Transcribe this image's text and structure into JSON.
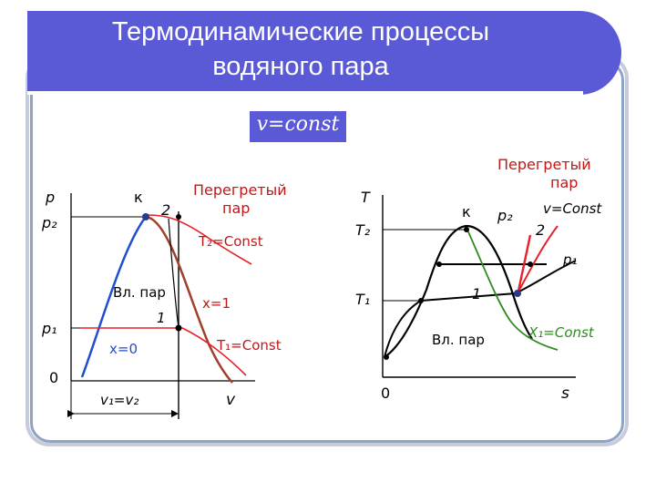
{
  "title": {
    "line1": "Термодинамические процессы",
    "line2": "водяного пара"
  },
  "vconst_label": "v=const",
  "left_diagram": {
    "p": "p",
    "p2": "p₂",
    "p1": "p₁",
    "zero": "0",
    "k": "к",
    "point2": "2",
    "superheated": [
      "Перегретый",
      "пар"
    ],
    "t2const": "T₂=Const",
    "wet_steam": "Вл. пар",
    "point1": "1",
    "x1": "x=1",
    "x0": "x=0",
    "t1const": "T₁=Const",
    "v1v2": "v₁=v₂",
    "v": "v"
  },
  "right_diagram": {
    "superheated": [
      "Перегретый",
      "пар"
    ],
    "T": "T",
    "T2": "T₂",
    "T1": "T₁",
    "k": "к",
    "p2": "p₂",
    "vconst": "v=Const",
    "point2": "2",
    "p1": "p₁",
    "point1": "1",
    "wet_steam": "Вл. пар",
    "x1const": "X₁=Const",
    "zero": "0",
    "s": "s"
  },
  "colors": {
    "title_bg": "#5a59d6",
    "blue_curve": "#1f4fd0",
    "red_curve": "#e8202a",
    "brown_curve": "#a0402a",
    "green_curve": "#2e8b1e",
    "dot": "#2a3a8a"
  }
}
